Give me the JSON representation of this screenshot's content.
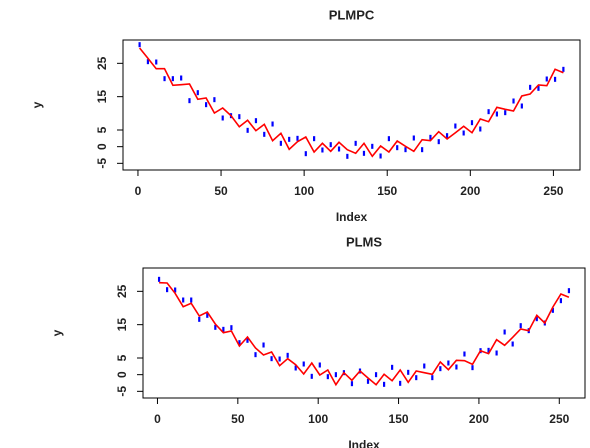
{
  "chart_data": [
    {
      "type": "line",
      "title": "PLMPC",
      "x_label": "Index",
      "y_label": "y",
      "x": [
        1,
        6,
        11,
        16,
        21,
        26,
        31,
        36,
        41,
        46,
        51,
        56,
        61,
        66,
        71,
        76,
        81,
        86,
        91,
        96,
        101,
        106,
        111,
        116,
        121,
        126,
        131,
        136,
        141,
        146,
        151,
        156,
        161,
        166,
        171,
        176,
        181,
        186,
        191,
        196,
        201,
        206,
        211,
        216,
        221,
        226,
        231,
        236,
        241,
        246,
        251,
        256
      ],
      "series": [
        {
          "color": "#0000ff",
          "marker": "point",
          "values": [
            30.6,
            25.5,
            25.4,
            20.4,
            20.4,
            20.6,
            13.8,
            16.2,
            12.6,
            14.1,
            8.6,
            9.3,
            9,
            4.9,
            7.8,
            3.7,
            6.8,
            1,
            2.2,
            2.5,
            -2.1,
            2.4,
            -1,
            0.6,
            -0.7,
            -2.9,
            1,
            -2,
            0.1,
            -2.8,
            2.4,
            -0.3,
            -0.9,
            2.6,
            -0.9,
            2.8,
            1.5,
            3.3,
            6.2,
            4.1,
            7.2,
            5.3,
            10.5,
            9.8,
            10.2,
            13.7,
            12.2,
            17.8,
            17.5,
            20.3,
            20.2,
            23.2
          ]
        },
        {
          "color": "#ff0000",
          "marker": "line",
          "values": [
            29.6,
            26.5,
            23.4,
            23.4,
            18.4,
            18.6,
            18.8,
            14.2,
            14.6,
            10.1,
            11.6,
            9.3,
            6,
            7.9,
            4.8,
            6.7,
            1.8,
            4,
            -0.8,
            1.5,
            2.9,
            -1.6,
            1,
            -1.4,
            1.3,
            -0.9,
            -2,
            1,
            -2.9,
            0.2,
            -1.6,
            1.7,
            0.1,
            -1.4,
            2.1,
            1.8,
            4.5,
            2.3,
            4.2,
            6.1,
            4.2,
            8.3,
            7.5,
            11.8,
            11.2,
            10.7,
            15.2,
            15.8,
            18.5,
            18.3,
            23.2,
            22.2
          ]
        }
      ],
      "xlim": [
        -9,
        266
      ],
      "ylim": [
        -7,
        32
      ],
      "xticks": [
        0,
        50,
        100,
        150,
        200,
        250
      ],
      "yticks": [
        -5,
        0,
        5,
        15,
        25
      ]
    },
    {
      "type": "line",
      "title": "PLMS",
      "x_label": "Index",
      "y_label": "y",
      "x": [
        1,
        6,
        11,
        16,
        21,
        26,
        31,
        36,
        41,
        46,
        51,
        56,
        61,
        66,
        71,
        76,
        81,
        86,
        91,
        96,
        101,
        106,
        111,
        116,
        121,
        126,
        131,
        136,
        141,
        146,
        151,
        156,
        161,
        166,
        171,
        176,
        181,
        186,
        191,
        196,
        201,
        206,
        211,
        216,
        221,
        226,
        231,
        236,
        241,
        246,
        251,
        256
      ],
      "series": [
        {
          "color": "#0000ff",
          "marker": "point",
          "values": [
            28.6,
            25.5,
            25.4,
            22.4,
            22.4,
            16.6,
            17.8,
            14.2,
            13.6,
            14.1,
            9.6,
            10.3,
            6,
            8.9,
            4.8,
            4.7,
            5.8,
            2,
            3.2,
            -0.5,
            2.9,
            -0.6,
            0,
            0.6,
            -2.7,
            1.1,
            -2,
            0,
            -2.9,
            2.2,
            -2.6,
            0.7,
            -0.9,
            2.6,
            -0.9,
            1.8,
            3.5,
            2.3,
            6.2,
            2.1,
            7.2,
            7.3,
            6.5,
            12.8,
            9.2,
            14.7,
            13.2,
            16.8,
            15.5,
            19.3,
            22.2,
            25.2
          ]
        },
        {
          "color": "#ff0000",
          "marker": "line",
          "values": [
            27.6,
            27.5,
            24.4,
            20.4,
            21.4,
            17.6,
            18.8,
            15.2,
            12.6,
            13.1,
            8.6,
            11.3,
            8,
            5.9,
            6.8,
            2.7,
            4.8,
            3,
            0.2,
            3.5,
            -0.1,
            1.4,
            -3,
            0.6,
            -1.7,
            1.1,
            -1,
            -3,
            0.1,
            -1.8,
            1.4,
            -2.3,
            1.1,
            0.6,
            0.1,
            3.8,
            1.5,
            4.3,
            4.2,
            3.1,
            7.2,
            6.3,
            10.5,
            8.8,
            11.2,
            13.7,
            13.2,
            17.8,
            15.5,
            20.3,
            24.2,
            23.2
          ]
        }
      ],
      "xlim": [
        -9,
        266
      ],
      "ylim": [
        -7,
        32
      ],
      "xticks": [
        0,
        50,
        100,
        150,
        200,
        250
      ],
      "yticks": [
        -5,
        0,
        5,
        15,
        25
      ]
    }
  ]
}
